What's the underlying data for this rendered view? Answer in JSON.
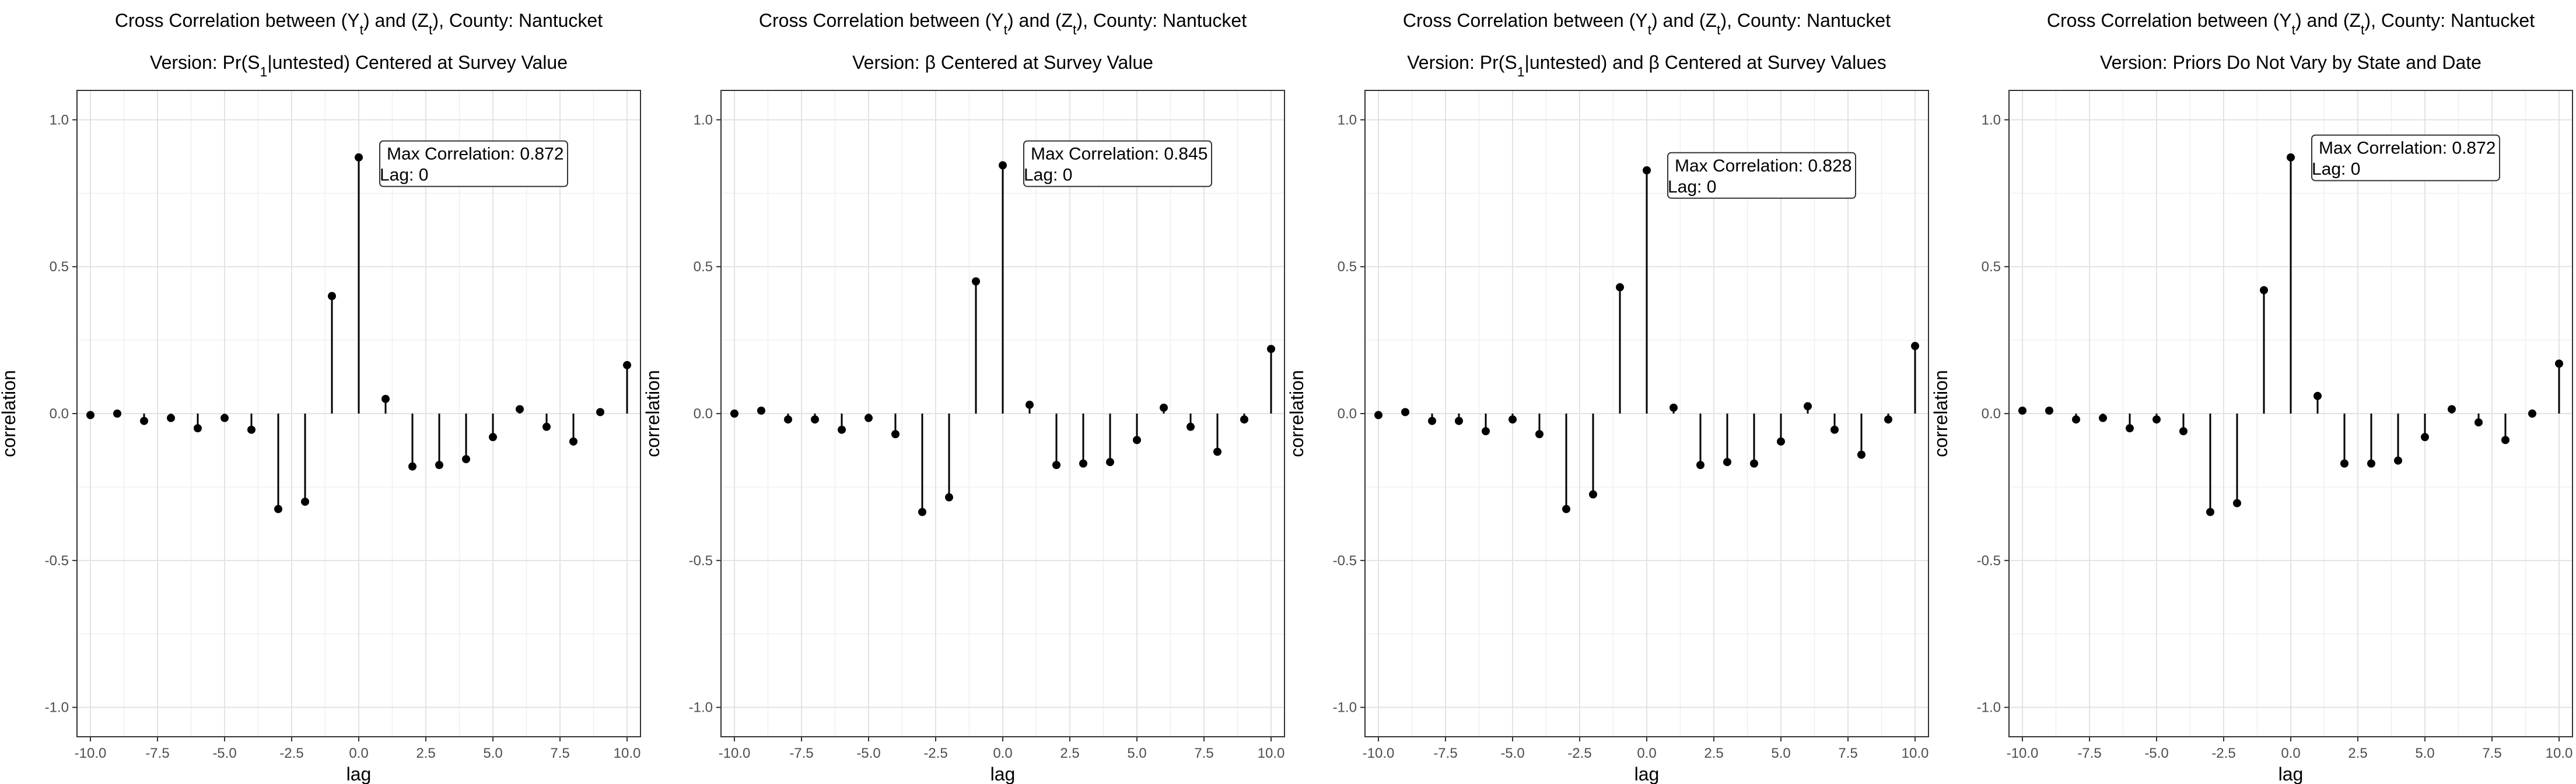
{
  "chart_data": [
    {
      "type": "stem",
      "title": {
        "prefix": "Cross Correlation between (Y",
        "sub1": "t",
        "mid": ") and (Z",
        "sub2": "t",
        "suffix": "), County: Nantucket"
      },
      "subtitle": {
        "pre": "Version: Pr(S",
        "sub": "1",
        "post": "|untested) Centered at Survey Value"
      },
      "xlabel": "lag",
      "ylabel": "correlation",
      "xlim": [
        -10.5,
        10.5
      ],
      "ylim": [
        -1.1,
        1.1
      ],
      "xticks": [
        "-10.0",
        "-7.5",
        "-5.0",
        "-2.5",
        "0.0",
        "2.5",
        "5.0",
        "7.5",
        "10.0"
      ],
      "yticks": [
        "-1.0",
        "-0.5",
        "0.0",
        "0.5",
        "1.0"
      ],
      "x": [
        -10,
        -9,
        -8,
        -7,
        -6,
        -5,
        -4,
        -3,
        -2,
        -1,
        0,
        1,
        2,
        3,
        4,
        5,
        6,
        7,
        8,
        9,
        10
      ],
      "y": [
        -0.005,
        0.0,
        -0.025,
        -0.015,
        -0.05,
        -0.015,
        -0.055,
        -0.325,
        -0.3,
        0.4,
        0.872,
        0.05,
        -0.18,
        -0.175,
        -0.155,
        -0.08,
        0.015,
        -0.045,
        -0.095,
        0.005,
        0.165
      ],
      "annotation": {
        "line1": "Max Correlation: 0.872",
        "line2": "Lag: 0",
        "lag": 1,
        "value": 0.92
      },
      "grid": true
    },
    {
      "type": "stem",
      "title": {
        "prefix": "Cross Correlation between (Y",
        "sub1": "t",
        "mid": ") and (Z",
        "sub2": "t",
        "suffix": "), County: Nantucket"
      },
      "subtitle": {
        "pre": "Version: ",
        "greek": "β",
        "post": " Centered at Survey Value"
      },
      "xlabel": "lag",
      "ylabel": "correlation",
      "xlim": [
        -10.5,
        10.5
      ],
      "ylim": [
        -1.1,
        1.1
      ],
      "xticks": [
        "-10.0",
        "-7.5",
        "-5.0",
        "-2.5",
        "0.0",
        "2.5",
        "5.0",
        "7.5",
        "10.0"
      ],
      "yticks": [
        "-1.0",
        "-0.5",
        "0.0",
        "0.5",
        "1.0"
      ],
      "x": [
        -10,
        -9,
        -8,
        -7,
        -6,
        -5,
        -4,
        -3,
        -2,
        -1,
        0,
        1,
        2,
        3,
        4,
        5,
        6,
        7,
        8,
        9,
        10
      ],
      "y": [
        0.0,
        0.01,
        -0.02,
        -0.02,
        -0.055,
        -0.015,
        -0.07,
        -0.335,
        -0.285,
        0.45,
        0.845,
        0.03,
        -0.175,
        -0.17,
        -0.165,
        -0.09,
        0.02,
        -0.045,
        -0.13,
        -0.02,
        0.22
      ],
      "annotation": {
        "line1": "Max Correlation: 0.845",
        "line2": "Lag: 0",
        "lag": 1,
        "value": 0.92
      },
      "grid": true
    },
    {
      "type": "stem",
      "title": {
        "prefix": "Cross Correlation between (Y",
        "sub1": "t",
        "mid": ") and (Z",
        "sub2": "t",
        "suffix": "), County: Nantucket"
      },
      "subtitle": {
        "pre": "Version: Pr(S",
        "sub": "1",
        "post": "|untested) and ",
        "greek": "β",
        "post2": " Centered at Survey Values"
      },
      "xlabel": "lag",
      "ylabel": "correlation",
      "xlim": [
        -10.5,
        10.5
      ],
      "ylim": [
        -1.1,
        1.1
      ],
      "xticks": [
        "-10.0",
        "-7.5",
        "-5.0",
        "-2.5",
        "0.0",
        "2.5",
        "5.0",
        "7.5",
        "10.0"
      ],
      "yticks": [
        "-1.0",
        "-0.5",
        "0.0",
        "0.5",
        "1.0"
      ],
      "x": [
        -10,
        -9,
        -8,
        -7,
        -6,
        -5,
        -4,
        -3,
        -2,
        -1,
        0,
        1,
        2,
        3,
        4,
        5,
        6,
        7,
        8,
        9,
        10
      ],
      "y": [
        -0.005,
        0.005,
        -0.025,
        -0.025,
        -0.06,
        -0.02,
        -0.07,
        -0.325,
        -0.275,
        0.43,
        0.828,
        0.02,
        -0.175,
        -0.165,
        -0.17,
        -0.095,
        0.025,
        -0.055,
        -0.14,
        -0.02,
        0.23
      ],
      "annotation": {
        "line1": "Max Correlation: 0.828",
        "line2": "Lag: 0",
        "lag": 1,
        "value": 0.88
      },
      "grid": true
    },
    {
      "type": "stem",
      "title": {
        "prefix": "Cross Correlation between (Y",
        "sub1": "t",
        "mid": ") and (Z",
        "sub2": "t",
        "suffix": "), County: Nantucket"
      },
      "subtitle": {
        "pre": "Version: Priors Do Not Vary by State and Date"
      },
      "xlabel": "lag",
      "ylabel": "correlation",
      "xlim": [
        -10.5,
        10.5
      ],
      "ylim": [
        -1.1,
        1.1
      ],
      "xticks": [
        "-10.0",
        "-7.5",
        "-5.0",
        "-2.5",
        "0.0",
        "2.5",
        "5.0",
        "7.5",
        "10.0"
      ],
      "yticks": [
        "-1.0",
        "-0.5",
        "0.0",
        "0.5",
        "1.0"
      ],
      "x": [
        -10,
        -9,
        -8,
        -7,
        -6,
        -5,
        -4,
        -3,
        -2,
        -1,
        0,
        1,
        2,
        3,
        4,
        5,
        6,
        7,
        8,
        9,
        10
      ],
      "y": [
        0.01,
        0.01,
        -0.02,
        -0.015,
        -0.05,
        -0.02,
        -0.06,
        -0.335,
        -0.305,
        0.42,
        0.872,
        0.06,
        -0.17,
        -0.17,
        -0.16,
        -0.08,
        0.015,
        -0.03,
        -0.09,
        0.0,
        0.17
      ],
      "annotation": {
        "line1": "Max Correlation: 0.872",
        "line2": "Lag: 0",
        "lag": 1,
        "value": 0.94
      },
      "grid": true
    }
  ]
}
